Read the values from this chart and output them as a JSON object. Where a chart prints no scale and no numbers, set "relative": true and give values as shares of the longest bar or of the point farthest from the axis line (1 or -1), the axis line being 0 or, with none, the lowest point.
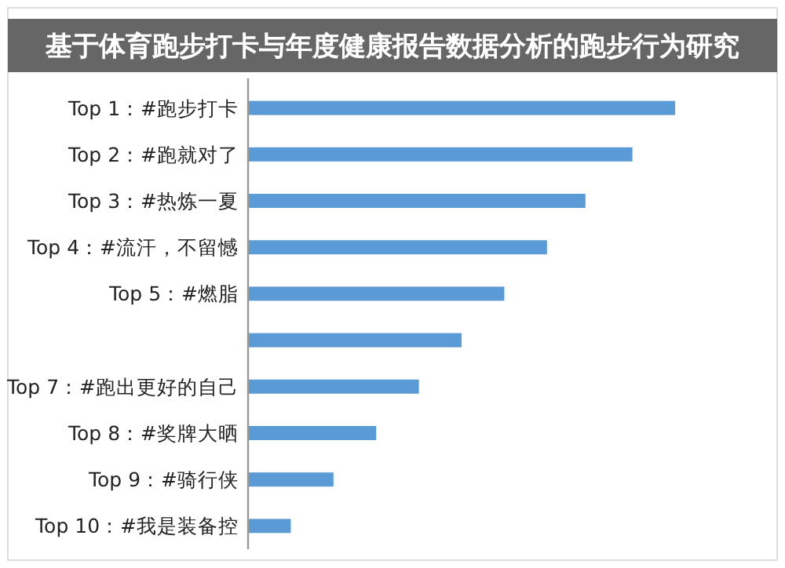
{
  "chart_data": {
    "type": "bar",
    "orientation": "horizontal",
    "relative": true,
    "title": "基于体育跑步打卡与年度健康报告数据分析的跑步行为研究",
    "categories": [
      "Top 1：#跑步打卡",
      "Top 2：#跑就对了",
      "Top 3：#热炼一夏",
      "Top 4：#流汗，不留憾",
      "Top 5：#燃脂",
      null,
      "Top 7：#跑出更好的自己",
      "Top 8：#奖牌大晒",
      "Top 9：#骑行侠",
      "Top 10：#我是装备控"
    ],
    "values": [
      1.0,
      0.9,
      0.79,
      0.7,
      0.6,
      0.5,
      0.4,
      0.3,
      0.2,
      0.1
    ],
    "color": "#5b9bd5"
  }
}
